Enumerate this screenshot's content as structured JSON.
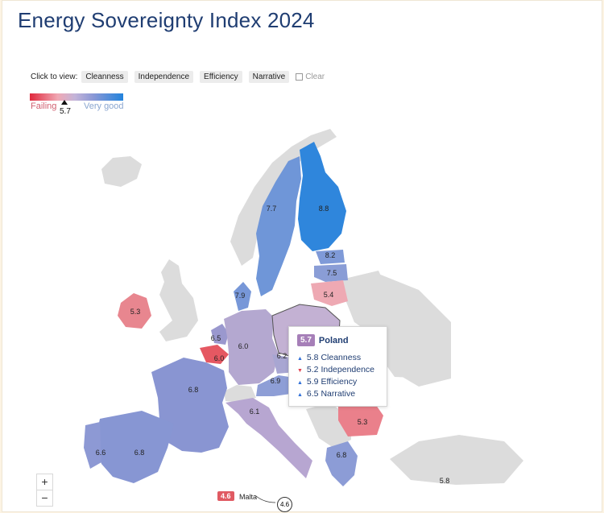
{
  "title": "Energy Sovereignty Index 2024",
  "filters": {
    "prompt": "Click to view:",
    "options": [
      "Cleanness",
      "Independence",
      "Efficiency",
      "Narrative"
    ],
    "clear_label": "Clear"
  },
  "legend": {
    "low_label": "Failing",
    "high_label": "Very good",
    "selected_value": "5.7",
    "colors": [
      "#e0283c",
      "#f0a8b4",
      "#c4b4d8",
      "#8a98d6",
      "#2283dc"
    ]
  },
  "countries": [
    {
      "value": "8.8"
    },
    {
      "value": "7.7"
    },
    {
      "value": "8.2"
    },
    {
      "value": "7.5"
    },
    {
      "value": "5.4"
    },
    {
      "value": "7.9"
    },
    {
      "value": "5.3"
    },
    {
      "value": "6.5"
    },
    {
      "value": "6.0"
    },
    {
      "value": "6.0"
    },
    {
      "value": "6.2"
    },
    {
      "value": "6.9"
    },
    {
      "value": "6.8"
    },
    {
      "value": "6.1"
    },
    {
      "value": "5.3"
    },
    {
      "value": "6.6"
    },
    {
      "value": "6.8"
    },
    {
      "value": "6.8"
    },
    {
      "value": "5.8"
    }
  ],
  "tooltip": {
    "value": "5.7",
    "country": "Poland",
    "metrics": [
      {
        "value": "5.8",
        "label": "Cleanness",
        "trend": "up"
      },
      {
        "value": "5.2",
        "label": "Independence",
        "trend": "down"
      },
      {
        "value": "5.9",
        "label": "Efficiency",
        "trend": "up"
      },
      {
        "value": "6.5",
        "label": "Narrative",
        "trend": "up"
      }
    ]
  },
  "malta": {
    "value": "4.6",
    "name": "Malta",
    "circle_value": "4.6"
  },
  "zoom": {
    "in": "+",
    "out": "−"
  }
}
